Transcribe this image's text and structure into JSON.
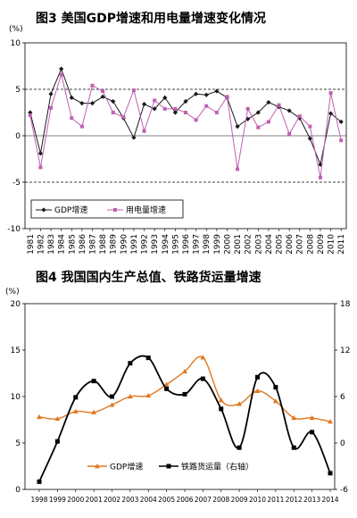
{
  "chart_data": [
    {
      "type": "line",
      "title": "图3    美国GDP增速和用电量增速变化情况",
      "unit_label": "(%)",
      "categories": [
        "1981",
        "1982",
        "1983",
        "1984",
        "1985",
        "1986",
        "1987",
        "1988",
        "1989",
        "1990",
        "1991",
        "1992",
        "1993",
        "1994",
        "1995",
        "1996",
        "1997",
        "1998",
        "1999",
        "2000",
        "2001",
        "2002",
        "2003",
        "2004",
        "2005",
        "2006",
        "2007",
        "2008",
        "2009",
        "2010",
        "2011"
      ],
      "series": [
        {
          "name": "GDP增速",
          "color": "#1a1a1a",
          "marker": "diamond",
          "values": [
            2.5,
            -1.9,
            4.5,
            7.2,
            4.1,
            3.5,
            3.5,
            4.2,
            3.7,
            1.9,
            -0.2,
            3.4,
            2.9,
            4.1,
            2.5,
            3.7,
            4.5,
            4.4,
            4.8,
            4.1,
            1.0,
            1.8,
            2.5,
            3.6,
            3.1,
            2.7,
            1.9,
            -0.3,
            -3.1,
            2.4,
            1.5
          ]
        },
        {
          "name": "用电量增速",
          "color": "#c060b0",
          "marker": "square",
          "values": [
            2.2,
            -3.4,
            3.0,
            6.6,
            1.9,
            1.0,
            5.4,
            4.8,
            2.5,
            2.0,
            4.9,
            0.5,
            3.8,
            2.9,
            2.9,
            2.5,
            1.7,
            3.2,
            2.5,
            4.2,
            -3.6,
            2.9,
            0.9,
            1.5,
            3.3,
            0.2,
            2.1,
            1.0,
            -4.5,
            4.6,
            -0.5
          ]
        }
      ],
      "ylim": [
        -10,
        10
      ],
      "yticks": [
        "10",
        "5",
        "0",
        "-5",
        "-10"
      ],
      "gridlines": [
        5,
        -5
      ]
    },
    {
      "type": "line",
      "title": "图4   我国国内生产总值、铁路货运量增速",
      "unit_label": "(%)",
      "categories": [
        "1998",
        "1999",
        "2000",
        "2001",
        "2002",
        "2003",
        "2004",
        "2005",
        "2006",
        "2007",
        "2008",
        "2009",
        "2010",
        "2011",
        "2012",
        "2013",
        "2014"
      ],
      "series": [
        {
          "name": "GDP增速",
          "axis": "left",
          "color": "#e07820",
          "marker": "triangle",
          "values": [
            7.8,
            7.6,
            8.4,
            8.3,
            9.1,
            10.0,
            10.1,
            11.3,
            12.7,
            14.2,
            9.6,
            9.2,
            10.6,
            9.5,
            7.7,
            7.7,
            7.3
          ]
        },
        {
          "name": "铁路货运量（右轴）",
          "axis": "right",
          "color": "#000000",
          "marker": "square",
          "values": [
            -5.0,
            0.2,
            5.9,
            8.0,
            6.0,
            10.3,
            11.0,
            7.0,
            6.3,
            8.3,
            4.4,
            -0.6,
            8.5,
            7.2,
            -0.6,
            1.4,
            -3.9
          ]
        }
      ],
      "ylim_left": [
        0,
        20
      ],
      "ylim_right": [
        -6,
        18
      ],
      "yticks_left": [
        "20",
        "15",
        "10",
        "5",
        "0"
      ],
      "yticks_right": [
        "18",
        "12",
        "6",
        "0",
        "-6"
      ]
    }
  ]
}
